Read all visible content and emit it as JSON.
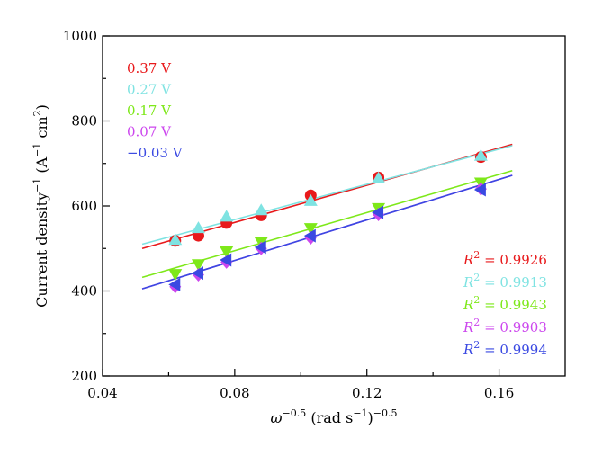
{
  "chart_data": {
    "type": "scatter",
    "title": "",
    "xlabel": {
      "base": "ω",
      "sup": "−0.5",
      "mid": " (rad s",
      "sup2": "−1",
      "end": ")",
      "sup3": "−0.5"
    },
    "ylabel": {
      "a": "Current density",
      "sup": "−1",
      "b": " (A",
      "sup2": "−1",
      "c": " cm",
      "sup3": "2",
      "d": ")"
    },
    "xlim": [
      0.04,
      0.18
    ],
    "ylim": [
      200,
      1000
    ],
    "xticks": [
      {
        "value": 0.04,
        "label": "0.04"
      },
      {
        "value": 0.08,
        "label": "0.08"
      },
      {
        "value": 0.12,
        "label": "0.12"
      },
      {
        "value": 0.16,
        "label": "0.16"
      }
    ],
    "yticks": [
      {
        "value": 200,
        "label": "200"
      },
      {
        "value": 400,
        "label": "400"
      },
      {
        "value": 600,
        "label": "600"
      },
      {
        "value": 800,
        "label": "800"
      },
      {
        "value": 1000,
        "label": "1000"
      }
    ],
    "x": [
      0.062,
      0.069,
      0.0775,
      0.088,
      0.103,
      0.1235,
      0.1545
    ],
    "fit_range": [
      0.052,
      0.164
    ],
    "series": [
      {
        "name": "0.37 V",
        "color": "#e8191b",
        "marker": "circle",
        "values": [
          518,
          530,
          560,
          578,
          625,
          667,
          715
        ],
        "fit": [
          500,
          745
        ],
        "r2_prefix": "R",
        "r2_sup": "2",
        "r2": " = 0.9926"
      },
      {
        "name": "0.27 V",
        "color": "#7fe3e2",
        "marker": "triangle-up",
        "values": [
          520,
          548,
          575,
          590,
          612,
          665,
          718
        ],
        "fit": [
          510,
          742
        ],
        "r2_prefix": "R",
        "r2_sup": "2",
        "r2": " = 0.9913"
      },
      {
        "name": "0.17 V",
        "color": "#7ee81a",
        "marker": "triangle-down",
        "values": [
          440,
          463,
          493,
          515,
          548,
          595,
          655
        ],
        "fit": [
          432,
          683
        ],
        "r2_prefix": "R",
        "r2_sup": "2",
        "r2": " = 0.9943"
      },
      {
        "name": "0.07 V",
        "color": "#cc46ee",
        "marker": "diamond",
        "values": [
          410,
          438,
          468,
          500,
          525,
          580,
          640
        ],
        "fit": [
          405,
          672
        ],
        "r2_prefix": "R",
        "r2_sup": "2",
        "r2": " = 0.9903"
      },
      {
        "name": "−0.03 V",
        "color": "#3a49e2",
        "marker": "triangle-left",
        "values": [
          415,
          442,
          473,
          503,
          530,
          585,
          638
        ],
        "fit": [
          405,
          672
        ],
        "r2_prefix": "R",
        "r2_sup": "2",
        "r2": " = 0.9994"
      }
    ]
  }
}
